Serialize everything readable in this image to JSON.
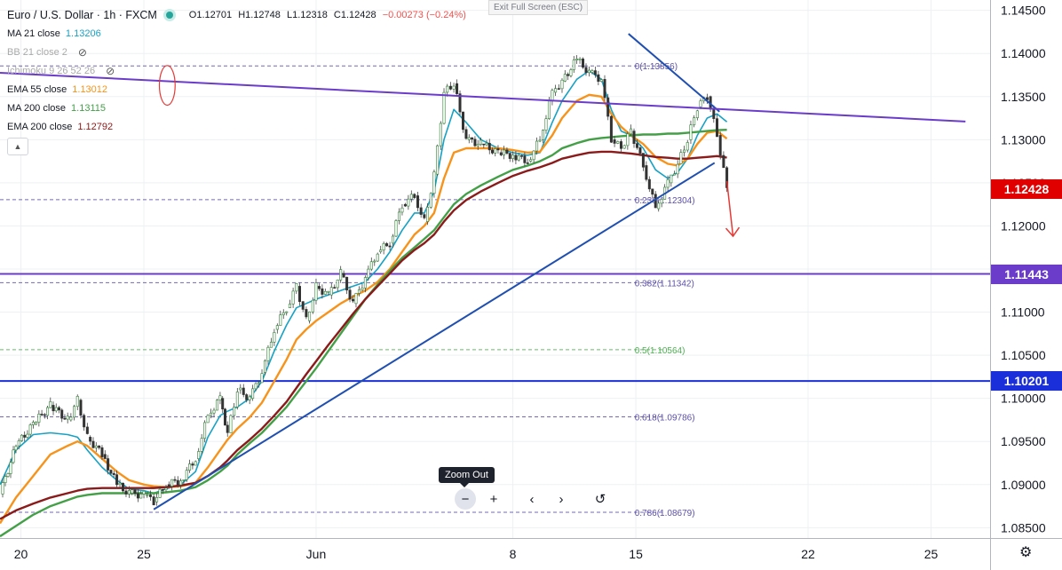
{
  "header": {
    "symbol": "Euro / U.S. Dollar · 1h · FXCM",
    "open": "O1.12701",
    "high": "H1.12748",
    "low": "L1.12318",
    "close": "C1.12428",
    "change": "−0.00273 (−0.24%)",
    "exit_fullscreen": "Exit Full Screen (ESC)"
  },
  "indicators": [
    {
      "label": "MA 21 close",
      "value": "1.13206",
      "color": "#17a2c4",
      "hidden": false
    },
    {
      "label": "BB 21 close 2",
      "value": "",
      "color": "#999999",
      "hidden": true
    },
    {
      "label": "Ichimoku 9 26 52 26",
      "value": "",
      "color": "#999999",
      "hidden": true
    },
    {
      "label": "EMA 55 close",
      "value": "1.13012",
      "color": "#f7931a",
      "hidden": false
    },
    {
      "label": "MA 200 close",
      "value": "1.13115",
      "color": "#43a047",
      "hidden": false
    },
    {
      "label": "EMA 200 close",
      "value": "1.12792",
      "color": "#8b1a1a",
      "hidden": false
    }
  ],
  "icons": {
    "hide": "eye-off-icon",
    "collapse": "chevron-up-icon",
    "settings": "gear-icon"
  },
  "controls": {
    "zoom_out_tooltip": "Zoom Out",
    "zoom_out": "−",
    "zoom_in": "+",
    "scroll_left": "‹",
    "scroll_right": "›",
    "reset": "↺"
  },
  "price_tags": [
    {
      "label": "1.12428",
      "value": 1.12428,
      "color": "#e00000"
    },
    {
      "label": "1.11443",
      "value": 1.11443,
      "color": "#6a3cc9"
    },
    {
      "label": "1.10201",
      "value": 1.10201,
      "color": "#1a2fd9"
    }
  ],
  "chart_data": {
    "type": "line",
    "title": "Euro / U.S. Dollar · 1h · FXCM",
    "y_ticks": [
      1.145,
      1.14,
      1.135,
      1.13,
      1.125,
      1.12,
      1.115,
      1.11,
      1.105,
      1.1,
      1.095,
      1.09,
      1.085
    ],
    "y_tick_labels": [
      "1.14500",
      "1.14000",
      "1.13500",
      "1.13000",
      "1.12500",
      "1.12000",
      "1.11500",
      "1.11000",
      "1.10500",
      "1.10000",
      "1.09500",
      "1.09000",
      "1.08500"
    ],
    "ylim": [
      1.0838,
      1.1462
    ],
    "x_ticks": [
      20,
      25,
      32,
      40,
      45,
      52,
      57
    ],
    "x_tick_labels": [
      "20",
      "25",
      "Jun",
      "8",
      "15",
      "22",
      "25"
    ],
    "xlim": [
      19.15,
      59.4
    ],
    "grid": true,
    "fib_levels": [
      {
        "label": "0.236(1.12304)",
        "value": 1.12304,
        "color": "#5b4fa8"
      },
      {
        "label": "0.382(1.11342)",
        "value": 1.11342,
        "color": "#5b4fa8"
      },
      {
        "label": "0.5(1.10564)",
        "value": 1.10564,
        "color": "#4caf50"
      },
      {
        "label": "0.618(1.09786)",
        "value": 1.09786,
        "color": "#5b4fa8"
      },
      {
        "label": "0.786(1.08679)",
        "value": 1.08679,
        "color": "#5b4fa8"
      },
      {
        "label": "0(1.13856)",
        "value": 1.13856,
        "color": "#5b4fa8"
      }
    ],
    "horizontal_levels": [
      {
        "value": 1.11443,
        "color": "#6a3cc9"
      },
      {
        "value": 1.10201,
        "color": "#1a2fd9"
      }
    ],
    "trendlines": [
      {
        "name": "upper-resistance",
        "color": "#1f4fb0",
        "points": [
          [
            44.7,
            1.14228
          ],
          [
            48.4,
            1.13325
          ]
        ]
      },
      {
        "name": "rising-support",
        "color": "#1f4fb0",
        "points": [
          [
            25.4,
            1.08712
          ],
          [
            48.2,
            1.12731
          ]
        ]
      },
      {
        "name": "long-resistance",
        "color": "#6a3cc9",
        "points": [
          [
            19.15,
            1.13776
          ],
          [
            58.4,
            1.13211
          ]
        ]
      }
    ],
    "price_series": {
      "x": [
        19.15,
        19.8,
        20.5,
        21.2,
        21.9,
        22.3,
        22.7,
        23.3,
        23.9,
        24.4,
        25.0,
        25.4,
        25.9,
        26.5,
        27.1,
        27.6,
        28.1,
        28.4,
        28.8,
        29.3,
        29.8,
        30.3,
        30.8,
        31.2,
        31.6,
        32.0,
        32.5,
        33.0,
        33.5,
        34.0,
        34.5,
        35.0,
        35.5,
        36.0,
        36.4,
        36.8,
        37.2,
        37.6,
        38.1,
        38.7,
        39.4,
        40.0,
        40.6,
        41.1,
        41.6,
        42.0,
        42.6,
        43.1,
        43.6,
        44.0,
        44.4,
        44.8,
        45.3,
        45.8,
        46.3,
        46.7,
        47.1,
        47.5,
        47.9,
        48.3,
        48.7
      ],
      "close": [
        1.0889,
        1.0945,
        1.097,
        1.0992,
        1.0975,
        1.0998,
        1.0955,
        1.0935,
        1.09,
        1.089,
        1.0888,
        1.088,
        1.09,
        1.0905,
        1.093,
        1.098,
        1.1,
        1.096,
        1.101,
        1.1,
        1.103,
        1.108,
        1.1105,
        1.113,
        1.109,
        1.113,
        1.112,
        1.1145,
        1.111,
        1.114,
        1.117,
        1.118,
        1.1225,
        1.1235,
        1.1205,
        1.126,
        1.1355,
        1.1365,
        1.13,
        1.1295,
        1.1285,
        1.1282,
        1.1275,
        1.13,
        1.1355,
        1.1368,
        1.1393,
        1.1378,
        1.137,
        1.13,
        1.129,
        1.131,
        1.127,
        1.122,
        1.125,
        1.1272,
        1.13,
        1.1338,
        1.135,
        1.1305,
        1.12428
      ]
    },
    "series": [
      {
        "name": "MA 21 close",
        "color": "#17a2c4",
        "values": [
          1.09,
          1.094,
          1.0958,
          1.096,
          1.0958,
          1.0955,
          1.094,
          1.092,
          1.0905,
          1.0895,
          1.0893,
          1.089,
          1.0895,
          1.09,
          1.0915,
          1.0955,
          1.098,
          1.0985,
          1.099,
          1.1,
          1.102,
          1.1055,
          1.1085,
          1.1105,
          1.111,
          1.1115,
          1.112,
          1.1125,
          1.113,
          1.1135,
          1.115,
          1.117,
          1.1195,
          1.1215,
          1.1215,
          1.124,
          1.13,
          1.1335,
          1.132,
          1.13,
          1.129,
          1.1285,
          1.1282,
          1.1285,
          1.132,
          1.1345,
          1.137,
          1.138,
          1.137,
          1.1335,
          1.131,
          1.1305,
          1.129,
          1.1265,
          1.1255,
          1.1262,
          1.1278,
          1.1305,
          1.1325,
          1.133,
          1.13206
        ]
      },
      {
        "name": "EMA 55 close",
        "color": "#f7931a",
        "values": [
          1.0855,
          1.0885,
          1.091,
          1.0935,
          1.0945,
          1.095,
          1.0945,
          1.093,
          1.0915,
          1.0905,
          1.09,
          1.0898,
          1.0897,
          1.0898,
          1.0902,
          1.092,
          1.094,
          1.0952,
          1.0965,
          1.0978,
          1.0995,
          1.102,
          1.1045,
          1.1068,
          1.108,
          1.109,
          1.11,
          1.111,
          1.1118,
          1.1125,
          1.1135,
          1.115,
          1.117,
          1.119,
          1.12,
          1.1215,
          1.1255,
          1.1285,
          1.129,
          1.129,
          1.129,
          1.1288,
          1.1285,
          1.1286,
          1.1305,
          1.1325,
          1.1345,
          1.1352,
          1.135,
          1.133,
          1.1315,
          1.1305,
          1.1295,
          1.128,
          1.1272,
          1.127,
          1.1278,
          1.1295,
          1.1308,
          1.131,
          1.13012
        ]
      },
      {
        "name": "MA 200 close",
        "color": "#43a047",
        "values": [
          1.084,
          1.0852,
          1.0865,
          1.0875,
          1.0882,
          1.0886,
          1.0888,
          1.089,
          1.089,
          1.089,
          1.089,
          1.089,
          1.0891,
          1.0893,
          1.0897,
          1.0905,
          1.0915,
          1.0922,
          1.0935,
          1.0948,
          1.096,
          1.0975,
          1.099,
          1.1005,
          1.102,
          1.1035,
          1.1055,
          1.1075,
          1.1095,
          1.1115,
          1.1132,
          1.1148,
          1.1163,
          1.1175,
          1.1185,
          1.1195,
          1.121,
          1.1225,
          1.1237,
          1.1247,
          1.1257,
          1.1265,
          1.127,
          1.1275,
          1.1282,
          1.129,
          1.1296,
          1.13,
          1.1302,
          1.1303,
          1.1304,
          1.1305,
          1.1306,
          1.1306,
          1.1307,
          1.1307,
          1.1308,
          1.1309,
          1.131,
          1.1311,
          1.13115
        ]
      },
      {
        "name": "EMA 200 close",
        "color": "#8b1a1a",
        "values": [
          1.086,
          1.087,
          1.0878,
          1.0885,
          1.089,
          1.0893,
          1.0895,
          1.0896,
          1.0896,
          1.0896,
          1.0896,
          1.0896,
          1.0897,
          1.0899,
          1.0902,
          1.091,
          1.092,
          1.0928,
          1.094,
          1.0952,
          1.0965,
          1.098,
          1.0996,
          1.1012,
          1.1028,
          1.1043,
          1.1062,
          1.108,
          1.1098,
          1.1115,
          1.113,
          1.1145,
          1.116,
          1.1172,
          1.118,
          1.119,
          1.1205,
          1.1218,
          1.123,
          1.124,
          1.125,
          1.1258,
          1.1264,
          1.1268,
          1.1273,
          1.1278,
          1.1282,
          1.1285,
          1.1286,
          1.1286,
          1.1285,
          1.1284,
          1.1282,
          1.128,
          1.1279,
          1.1278,
          1.1278,
          1.1279,
          1.128,
          1.1281,
          1.12792
        ]
      }
    ],
    "annotations": [
      {
        "type": "ellipse",
        "color": "#e53935",
        "cx": 25.95,
        "cy": 1.1363,
        "rx": 0.32,
        "ry": 0.0023
      },
      {
        "type": "arrow",
        "color": "#e53935",
        "from": [
          48.7,
          1.1252
        ],
        "to": [
          48.95,
          1.1188
        ]
      }
    ]
  }
}
